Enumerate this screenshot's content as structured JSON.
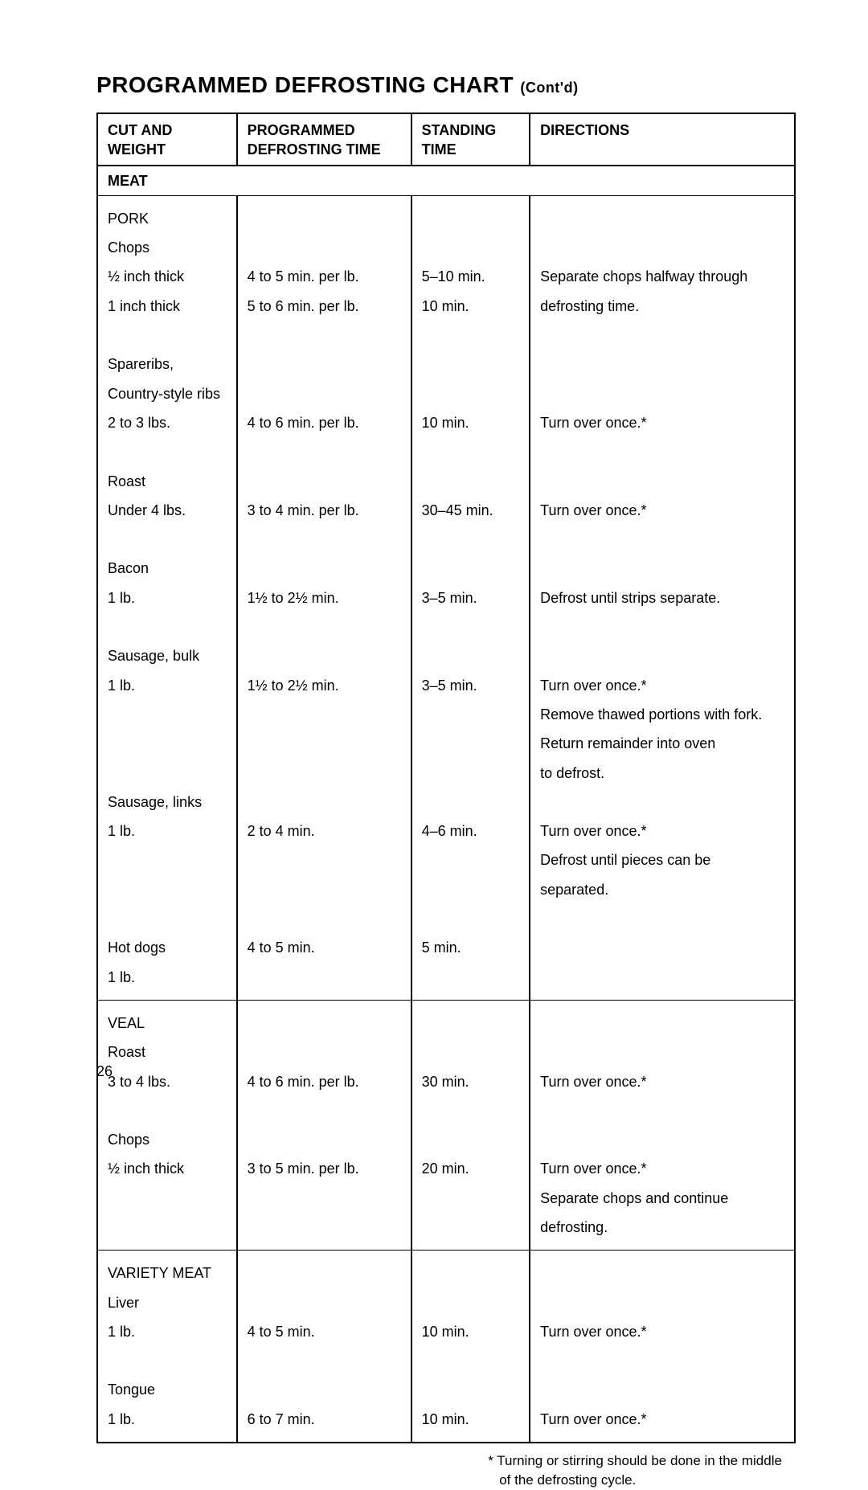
{
  "title_main": "PROGRAMMED DEFROSTING CHART",
  "title_suffix": "(Cont'd)",
  "headers": {
    "c1a": "CUT AND",
    "c1b": "WEIGHT",
    "c2a": "PROGRAMMED",
    "c2b": "DEFROSTING TIME",
    "c3a": "STANDING",
    "c3b": "TIME",
    "c4": "DIRECTIONS"
  },
  "section_label": "MEAT",
  "pork": {
    "cat": "PORK",
    "chops_label": "Chops",
    "chops_half_label": "½ inch thick",
    "chops_half_time": "4 to 5 min. per lb.",
    "chops_half_stand": "5–10 min.",
    "chops_one_label": "1 inch thick",
    "chops_one_time": "5 to 6 min. per lb.",
    "chops_one_stand": "10 min.",
    "chops_dir1": "Separate chops halfway through",
    "chops_dir2": "defrosting time.",
    "spareribs_l1": "Spareribs,",
    "spareribs_l2": "Country-style ribs",
    "spareribs_l3": "2 to 3 lbs.",
    "spareribs_time": "4 to 6 min. per lb.",
    "spareribs_stand": "10 min.",
    "spareribs_dir": "Turn over once.*",
    "roast_l1": "Roast",
    "roast_l2": "Under 4 lbs.",
    "roast_time": "3 to 4 min. per lb.",
    "roast_stand": "30–45 min.",
    "roast_dir": "Turn over once.*",
    "bacon_l1": "Bacon",
    "bacon_l2": "1 lb.",
    "bacon_time": "1½ to 2½ min.",
    "bacon_stand": "3–5 min.",
    "bacon_dir": "Defrost until strips separate.",
    "sausb_l1": "Sausage, bulk",
    "sausb_l2": "1 lb.",
    "sausb_time": "1½ to 2½ min.",
    "sausb_stand": "3–5 min.",
    "sausb_d1": "Turn over once.*",
    "sausb_d2": "Remove thawed portions with fork.",
    "sausb_d3": "Return remainder into oven",
    "sausb_d4": "to defrost.",
    "sausl_l1": "Sausage, links",
    "sausl_l2": "1 lb.",
    "sausl_time": "2 to 4 min.",
    "sausl_stand": "4–6 min.",
    "sausl_d1": "Turn over once.*",
    "sausl_d2": "Defrost until pieces can be",
    "sausl_d3": "separated.",
    "hot_l1": "Hot dogs",
    "hot_l2": "1 lb.",
    "hot_time": "4 to 5 min.",
    "hot_stand": "5 min."
  },
  "veal": {
    "cat": "VEAL",
    "roast_l1": "Roast",
    "roast_l2": "3 to 4 lbs.",
    "roast_time": "4 to 6 min. per lb.",
    "roast_stand": "30 min.",
    "roast_dir": "Turn over once.*",
    "chops_l1": "Chops",
    "chops_l2": "½ inch thick",
    "chops_time": "3 to 5 min. per lb.",
    "chops_stand": "20 min.",
    "chops_d1": "Turn over once.*",
    "chops_d2": "Separate chops and continue",
    "chops_d3": "defrosting."
  },
  "variety": {
    "cat": "VARIETY MEAT",
    "liver_l1": "Liver",
    "liver_l2": "1 lb.",
    "liver_time": "4 to 5 min.",
    "liver_stand": "10 min.",
    "liver_dir": "Turn over once.*",
    "tongue_l1": "Tongue",
    "tongue_l2": "1 lb.",
    "tongue_time": "6 to 7 min.",
    "tongue_stand": "10 min.",
    "tongue_dir": "Turn over once.*"
  },
  "footnote": "* Turning or stirring should be done in the middle of the defrosting cycle.",
  "page_number": "26"
}
